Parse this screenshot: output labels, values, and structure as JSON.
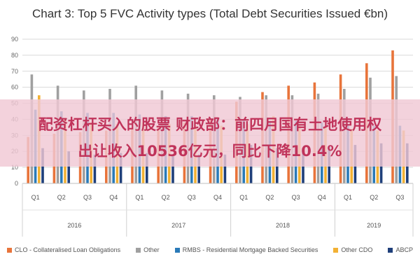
{
  "chart_data": {
    "type": "bar",
    "title": "Chart 3: Top 5 FVC Activity types (Total Debt Securities Issued €bn)",
    "ylim": [
      0,
      90
    ],
    "yticks": [
      0,
      10,
      20,
      30,
      40,
      50,
      60,
      70,
      80,
      90
    ],
    "grid": true,
    "legend_position": "bottom",
    "categories": [
      "Q1",
      "Q2",
      "Q3",
      "Q4",
      "Q1",
      "Q2",
      "Q3",
      "Q4",
      "Q1",
      "Q2",
      "Q3",
      "Q4",
      "Q1",
      "Q2",
      "Q3"
    ],
    "year_groups": [
      {
        "label": "2016",
        "span": 4
      },
      {
        "label": "2017",
        "span": 4
      },
      {
        "label": "2018",
        "span": 4
      },
      {
        "label": "2019",
        "span": 3
      }
    ],
    "series": [
      {
        "name": "CLO - Collateralised Loan Obligations",
        "color": "#e8743b",
        "values": [
          29,
          31,
          32,
          33,
          34,
          36,
          38,
          40,
          51,
          57,
          61,
          63,
          68,
          75,
          83
        ]
      },
      {
        "name": "Other",
        "color": "#a0a0a0",
        "values": [
          68,
          61,
          58,
          59,
          61,
          58,
          56,
          55,
          54,
          55,
          55,
          56,
          59,
          66,
          67
        ]
      },
      {
        "name": "RMBS - Residential Mortgage Backed Securities",
        "color": "#2a7ab8",
        "values": [
          46,
          45,
          44,
          44,
          43,
          42,
          42,
          41,
          40,
          39,
          39,
          38,
          37,
          36,
          36
        ]
      },
      {
        "name": "Other CDO",
        "color": "#f2b134",
        "values": [
          55,
          40,
          38,
          37,
          38,
          37,
          36,
          36,
          37,
          42,
          36,
          35,
          34,
          33,
          33
        ]
      },
      {
        "name": "ABCP",
        "color": "#1f3f7a",
        "values": [
          22,
          20,
          18,
          19,
          19,
          18,
          18,
          18,
          24,
          22,
          22,
          23,
          24,
          25,
          25
        ]
      }
    ]
  },
  "overlay": {
    "line1": "配资杠杆买入的股票 财政部：前四月国有土地使用权",
    "line2": "出让收入10536亿元，同比下降10.4%"
  }
}
